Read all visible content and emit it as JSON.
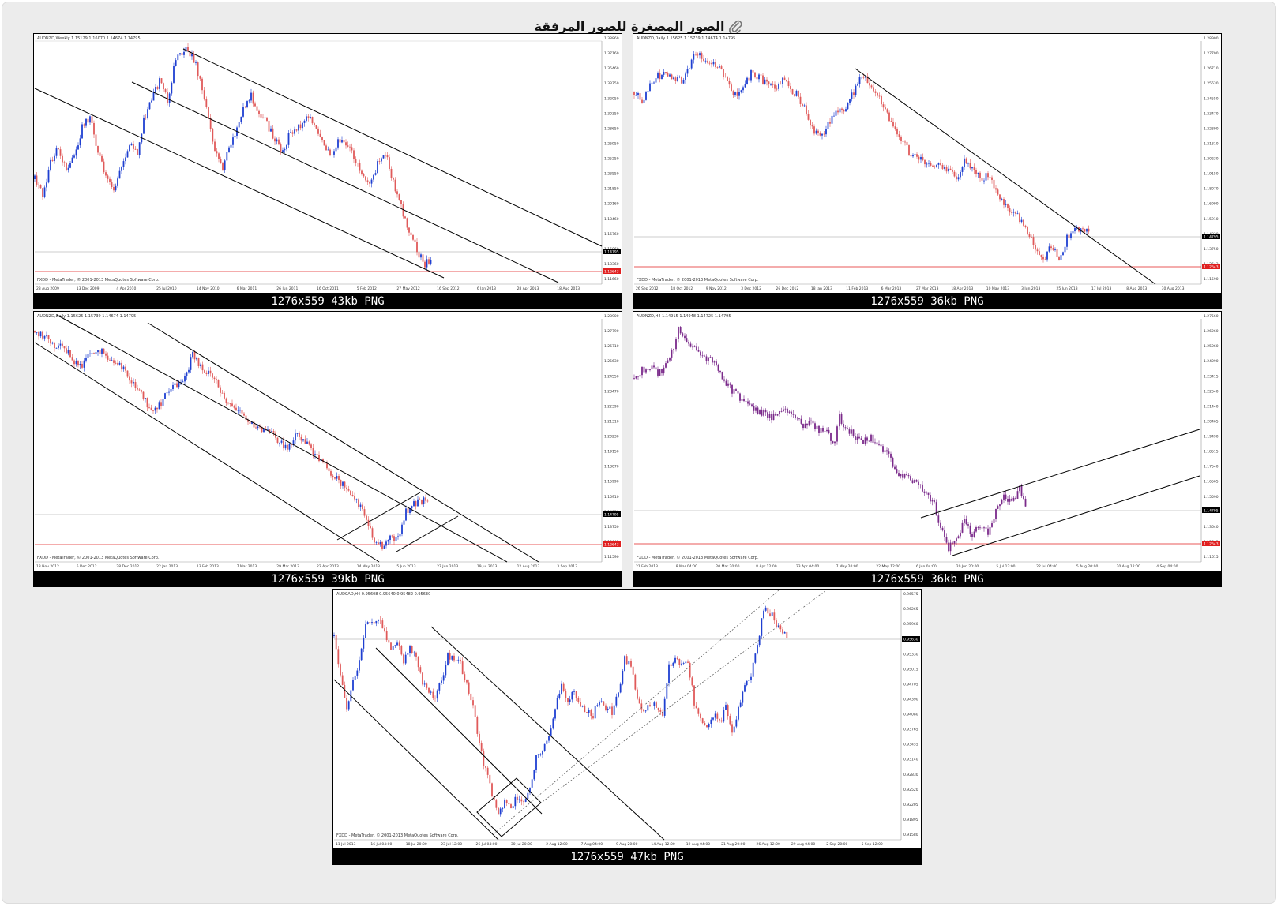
{
  "header": {
    "title": "الصور المصغرة للصور المرفقة",
    "icon": "paperclip-icon"
  },
  "colors": {
    "up_candle": "#1f3fd1",
    "down_candle": "#e05a5a",
    "mixed_candle": "#7a2a8a",
    "support_line": "#e02020",
    "price_line": "#9a9a9a",
    "trend_line": "#000000",
    "caption_bg": "#000000",
    "caption_text": "#ffffff",
    "panel_bg": "#ececec"
  },
  "thumbnails": [
    {
      "caption": "1276x559 43kb PNG",
      "header_text": "AUDNZD,Weekly 1.15129 1.16070 1.14674 1.14795",
      "footer_text": "FXDD - MetaTrader, © 2001-2013 MetaQuotes Software Corp.",
      "x_labels": [
        "23 Aug 2009",
        "13 Dec 2009",
        "4 Apr 2010",
        "25 Jul 2010",
        "14 Nov 2010",
        "6 Mar 2011",
        "26 Jun 2011",
        "16 Oct 2011",
        "5 Feb 2012",
        "27 May 2012",
        "16 Sep 2012",
        "6 Jan 2013",
        "28 Apr 2013",
        "18 Aug 2013"
      ],
      "y_labels": [
        "1.38860",
        "1.37160",
        "1.35460",
        "1.33750",
        "1.32050",
        "1.30350",
        "1.28650",
        "1.26950",
        "1.25250",
        "1.23550",
        "1.21850",
        "1.20160",
        "1.18460",
        "1.16760",
        "1.15060",
        "1.13360",
        "1.11660"
      ],
      "price_label": "1.14795",
      "support_label": "1.12643"
    },
    {
      "caption": "1276x559 36kb PNG",
      "header_text": "AUDNZD,Daily 1.15625 1.15739 1.14674 1.14795",
      "footer_text": "FXDD - MetaTrader, © 2001-2013 MetaQuotes Software Corp.",
      "x_labels": [
        "26 Sep 2012",
        "18 Oct 2012",
        "9 Nov 2012",
        "3 Dec 2012",
        "26 Dec 2012",
        "18 Jan 2013",
        "11 Feb 2013",
        "6 Mar 2013",
        "27 Mar 2013",
        "18 Apr 2013",
        "10 May 2013",
        "3 Jun 2013",
        "25 Jun 2013",
        "17 Jul 2013",
        "8 Aug 2013",
        "30 Aug 2013"
      ],
      "y_labels": [
        "1.28900",
        "1.27790",
        "1.26710",
        "1.25630",
        "1.24550",
        "1.23470",
        "1.22390",
        "1.21310",
        "1.20230",
        "1.19150",
        "1.18070",
        "1.16990",
        "1.15910",
        "1.14830",
        "1.13750",
        "1.12643",
        "1.11590"
      ],
      "price_label": "1.14795",
      "support_label": "1.12643"
    },
    {
      "caption": "1276x559 39kb PNG",
      "header_text": "AUDNZD,Daily 1.15625 1.15739 1.14674 1.14795",
      "footer_text": "FXDD - MetaTrader, © 2001-2013 MetaQuotes Software Corp.",
      "x_labels": [
        "13 Nov 2012",
        "5 Dec 2012",
        "28 Dec 2012",
        "22 Jan 2013",
        "13 Feb 2013",
        "7 Mar 2013",
        "29 Mar 2013",
        "22 Apr 2013",
        "14 May 2013",
        "5 Jun 2013",
        "27 Jun 2013",
        "19 Jul 2013",
        "12 Aug 2013",
        "3 Sep 2013"
      ],
      "y_labels": [
        "1.28900",
        "1.27790",
        "1.26710",
        "1.25630",
        "1.24550",
        "1.23470",
        "1.22390",
        "1.21310",
        "1.20230",
        "1.19150",
        "1.18070",
        "1.16990",
        "1.15910",
        "1.14830",
        "1.13750",
        "1.12643",
        "1.11590"
      ],
      "price_label": "1.14795",
      "support_label": "1.12643"
    },
    {
      "caption": "1276x559 36kb PNG",
      "header_text": "AUDNZD,H4 1.14915 1.14948 1.14725 1.14795",
      "footer_text": "FXDD - MetaTrader, © 2001-2013 MetaQuotes Software Corp.",
      "x_labels": [
        "21 Feb 2013",
        "8 Mar 04:00",
        "20 Mar 20:00",
        "8 Apr 12:00",
        "23 Apr 04:00",
        "7 May 20:00",
        "22 May 12:00",
        "6 Jun 04:00",
        "20 Jun 20:00",
        "5 Jul 12:00",
        "22 Jul 04:00",
        "5 Aug 20:00",
        "20 Aug 12:00",
        "4 Sep 04:00"
      ],
      "y_labels": [
        "1.27560",
        "1.26260",
        "1.25060",
        "1.24090",
        "1.23415",
        "1.22640",
        "1.21440",
        "1.20465",
        "1.19490",
        "1.18515",
        "1.17540",
        "1.16565",
        "1.15590",
        "1.14795",
        "1.13640",
        "1.12643",
        "1.11615"
      ],
      "price_label": "1.14795",
      "support_label": "1.12643"
    },
    {
      "caption": "1276x559 47kb PNG",
      "header_text": "AUDCAD,H4 0.95608 0.95640 0.95482 0.95630",
      "footer_text": "FXDD - MetaTrader, © 2001-2013 MetaQuotes Software Corp.",
      "x_labels": [
        "11 Jul 2013",
        "16 Jul 04:00",
        "18 Jul 20:00",
        "23 Jul 12:00",
        "26 Jul 04:00",
        "30 Jul 20:00",
        "2 Aug 12:00",
        "7 Aug 04:00",
        "9 Aug 20:00",
        "14 Aug 12:00",
        "19 Aug 04:00",
        "21 Aug 20:00",
        "26 Aug 12:00",
        "29 Aug 04:00",
        "2 Sep 20:00",
        "5 Sep 12:00"
      ],
      "y_labels": [
        "0.96575",
        "0.96265",
        "0.95960",
        "0.95630",
        "0.95330",
        "0.95015",
        "0.94705",
        "0.94390",
        "0.94080",
        "0.93765",
        "0.93455",
        "0.93140",
        "0.92830",
        "0.92520",
        "0.92205",
        "0.91895",
        "0.91580"
      ],
      "price_label": "0.95630",
      "support_label": ""
    }
  ]
}
